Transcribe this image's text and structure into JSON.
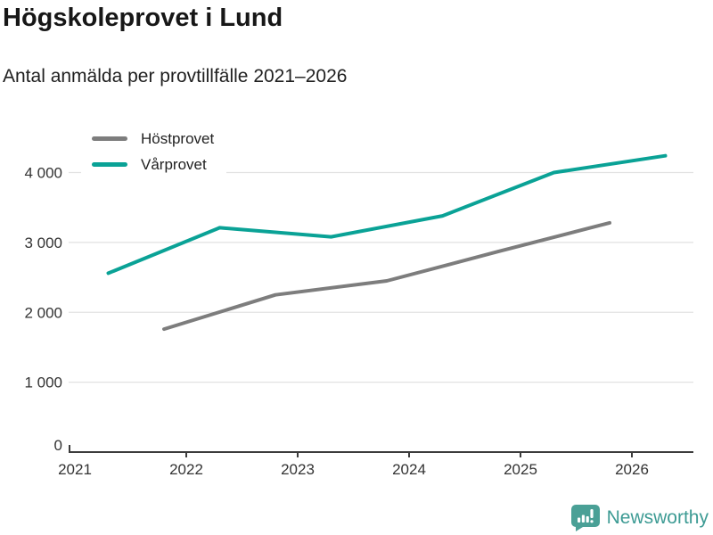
{
  "header": {
    "title": "Högskoleprovet i Lund",
    "subtitle": "Antal anmälda per provtillfälle 2021–2026"
  },
  "legend": {
    "items": [
      {
        "label": "Höstprovet",
        "color": "#7d7d7d"
      },
      {
        "label": "Vårprovet",
        "color": "#0aa296"
      }
    ]
  },
  "chart_data": {
    "type": "line",
    "title": "Högskoleprovet i Lund",
    "subtitle": "Antal anmälda per provtillfälle 2021–2026",
    "xlabel": "",
    "ylabel": "",
    "xlim": [
      2021,
      2026.65
    ],
    "ylim": [
      0,
      4400
    ],
    "xticks": [
      2021,
      2022,
      2023,
      2024,
      2025,
      2026
    ],
    "yticks": [
      0,
      1000,
      2000,
      3000,
      4000
    ],
    "ytick_labels": [
      "0",
      "1 000",
      "2 000",
      "3 000",
      "4 000"
    ],
    "grid": "horizontal",
    "legend_position": "top-left",
    "series": [
      {
        "name": "Höstprovet",
        "color": "#7d7d7d",
        "points": [
          [
            2021.8,
            1760
          ],
          [
            2022.8,
            2250
          ],
          [
            2023.8,
            2450
          ],
          [
            2024.8,
            2870
          ],
          [
            2025.8,
            3280
          ]
        ]
      },
      {
        "name": "Vårprovet",
        "color": "#0aa296",
        "points": [
          [
            2021.3,
            2560
          ],
          [
            2022.3,
            3210
          ],
          [
            2023.3,
            3080
          ],
          [
            2024.3,
            3380
          ],
          [
            2025.3,
            4000
          ],
          [
            2026.3,
            4240
          ]
        ]
      }
    ],
    "colors": {
      "grid": "#e2e2e2",
      "axis": "#3c3c3c",
      "tick_label": "#333333"
    }
  },
  "footer": {
    "brand": "Newsworthy",
    "icon_color": "#4aa096",
    "text_color": "#3d9b94"
  }
}
